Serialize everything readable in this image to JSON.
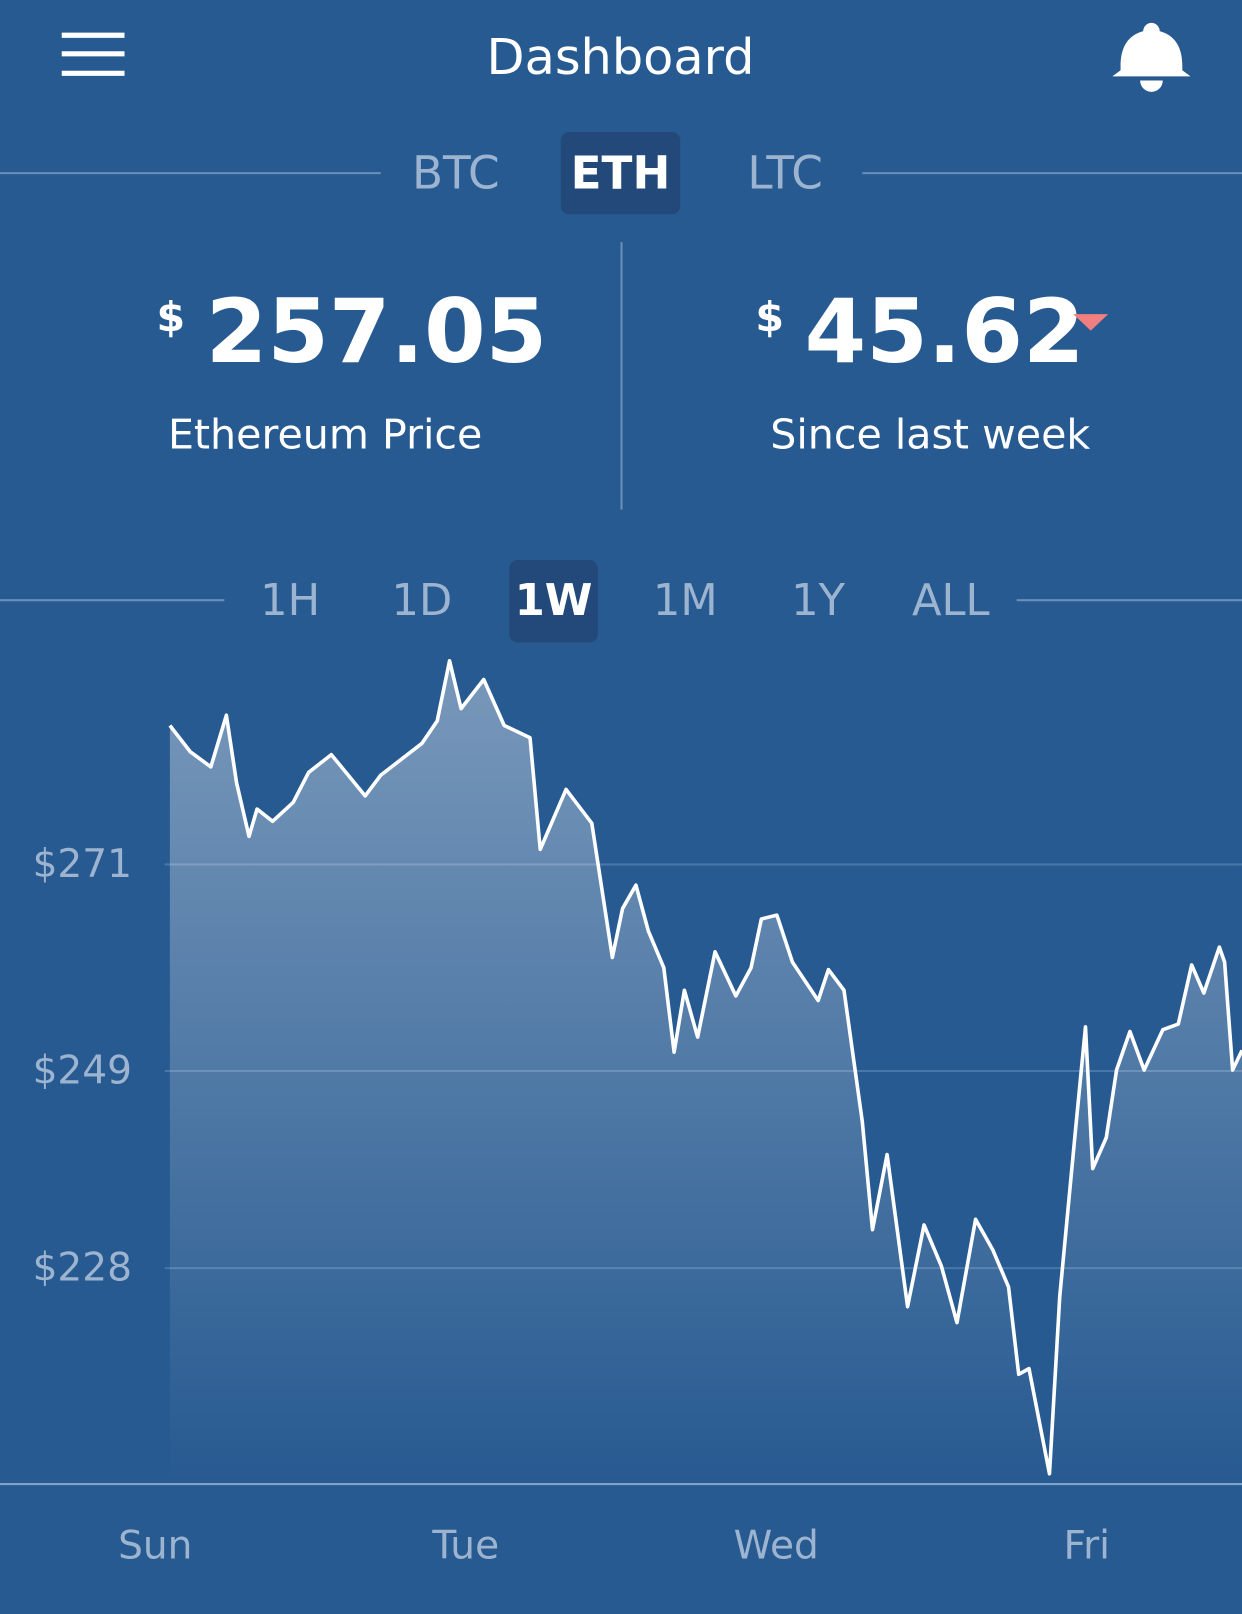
{
  "header": {
    "title": "Dashboard"
  },
  "coin_tabs": {
    "items": [
      "BTC",
      "ETH",
      "LTC"
    ],
    "active": 1
  },
  "price": {
    "currency": "$",
    "value": "257.05",
    "label": "Ethereum Price"
  },
  "change": {
    "currency": "$",
    "value": "45.62",
    "label": "Since last week"
  },
  "range_tabs": {
    "items": [
      "1H",
      "1D",
      "1W",
      "1M",
      "1Y",
      "ALL"
    ],
    "active": 2
  },
  "chart_data": {
    "type": "line",
    "color": "#ffffff",
    "grid": true,
    "x": [
      0.047,
      0.113,
      0.179,
      0.229,
      0.262,
      0.302,
      0.328,
      0.378,
      0.444,
      0.494,
      0.567,
      0.676,
      0.726,
      0.859,
      0.908,
      0.948,
      0.985,
      1.058,
      1.124,
      1.207,
      1.24,
      1.323,
      1.406,
      1.472,
      1.505,
      1.548,
      1.588,
      1.638,
      1.671,
      1.704,
      1.747,
      1.803,
      1.87,
      1.919,
      1.952,
      2.002,
      2.052,
      2.135,
      2.168,
      2.218,
      2.277,
      2.31,
      2.357,
      2.423,
      2.476,
      2.532,
      2.582,
      2.642,
      2.698,
      2.748,
      2.781,
      2.814,
      2.88,
      2.913,
      2.963,
      2.996,
      3.019,
      3.063,
      3.096,
      3.139,
      3.185,
      3.245,
      3.295,
      3.338,
      3.377,
      3.427,
      3.444,
      3.47,
      3.5
    ],
    "values": [
      285.8,
      283.0,
      281.4,
      286.9,
      279.7,
      274.0,
      276.9,
      275.6,
      277.6,
      280.8,
      282.7,
      278.3,
      280.5,
      283.9,
      286.3,
      292.7,
      287.6,
      290.7,
      285.8,
      284.5,
      272.6,
      279.0,
      275.4,
      261.1,
      266.3,
      268.8,
      263.9,
      260.0,
      251.0,
      257.6,
      252.6,
      261.7,
      257.0,
      260.0,
      265.2,
      265.6,
      260.6,
      256.5,
      259.8,
      257.6,
      243.6,
      232.1,
      240.1,
      223.9,
      232.6,
      228.2,
      222.2,
      233.2,
      229.9,
      226.0,
      216.7,
      217.3,
      206.1,
      225.0,
      242.5,
      253.7,
      238.6,
      241.9,
      249.1,
      253.2,
      249.1,
      253.4,
      254.0,
      260.3,
      257.3,
      262.2,
      260.6,
      249.1,
      251.2
    ],
    "xlim": [
      -0.5,
      3.5
    ],
    "ylim": [
      205,
      294
    ],
    "xticks": [
      {
        "value": 0,
        "label": "Sun"
      },
      {
        "value": 1,
        "label": "Tue"
      },
      {
        "value": 2,
        "label": "Wed"
      },
      {
        "value": 3,
        "label": "Fri"
      }
    ],
    "yticks": [
      {
        "value": 271,
        "label": "$271"
      },
      {
        "value": 249,
        "label": "$249"
      },
      {
        "value": 228,
        "label": "$228"
      }
    ]
  }
}
